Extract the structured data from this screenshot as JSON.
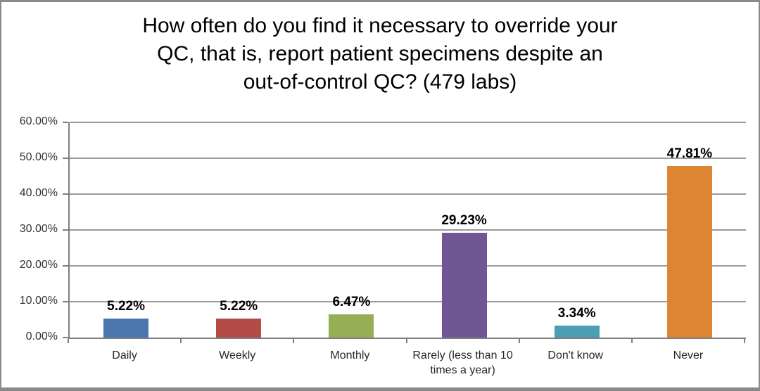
{
  "chart_data": {
    "type": "bar",
    "title": "How often do you find it necessary to override your QC, that is, report patient specimens despite an out-of-control QC? (479 labs)",
    "title_lines": [
      "How often do you find it necessary to override your",
      "QC, that is, report patient specimens despite an",
      "out-of-control QC? (479 labs)"
    ],
    "categories": [
      "Daily",
      "Weekly",
      "Monthly",
      "Rarely (less than 10 times a year)",
      "Don't know",
      "Never"
    ],
    "values": [
      5.22,
      5.22,
      6.47,
      29.23,
      3.34,
      47.81
    ],
    "value_labels": [
      "5.22%",
      "5.22%",
      "6.47%",
      "29.23%",
      "3.34%",
      "47.81%"
    ],
    "bar_colors": [
      "#4A77AD",
      "#B34B47",
      "#95AF54",
      "#6F5793",
      "#4A9FB2",
      "#DD8532"
    ],
    "y_ticks": [
      "0.00%",
      "10.00%",
      "20.00%",
      "30.00%",
      "40.00%",
      "50.00%",
      "60.00%"
    ],
    "y_tick_values": [
      0,
      10,
      20,
      30,
      40,
      50,
      60
    ],
    "ylim": [
      0,
      60
    ],
    "xlabel": "",
    "ylabel": "",
    "grid": true,
    "legend": "none"
  }
}
